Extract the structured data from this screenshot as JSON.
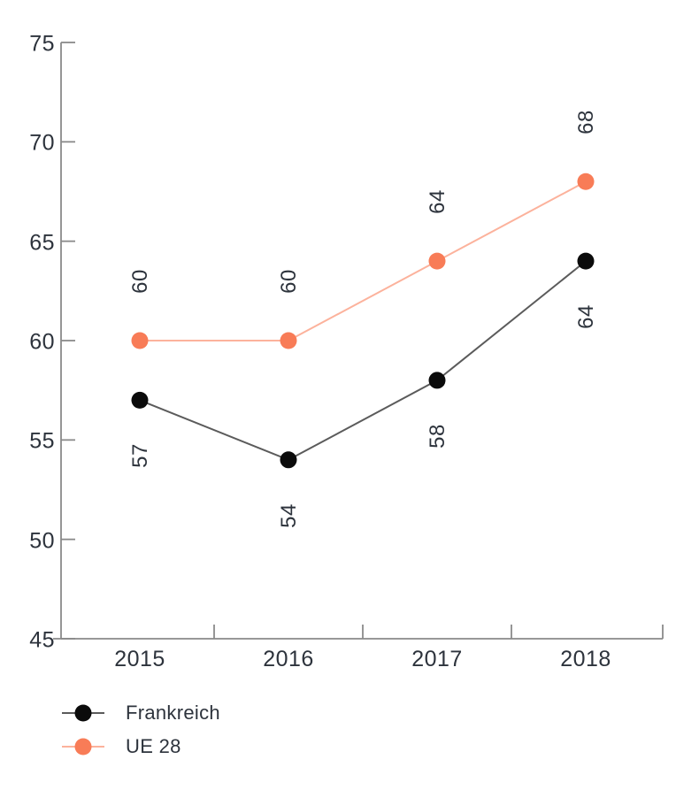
{
  "chart_data": {
    "type": "line",
    "title": "",
    "categories": [
      "2015",
      "2016",
      "2017",
      "2018"
    ],
    "series": [
      {
        "name": "Frankreich",
        "values": [
          57,
          54,
          58,
          64
        ],
        "marker_color": "#0b0b0b",
        "line_color": "#5b5b5b",
        "label_position": "below"
      },
      {
        "name": "UE 28",
        "values": [
          60,
          60,
          64,
          68
        ],
        "marker_color": "#f87c57",
        "line_color": "#fcb29c",
        "label_position": "above"
      }
    ],
    "xlabel": "",
    "ylabel": "",
    "ylim": [
      45,
      75
    ],
    "yticks": [
      45,
      50,
      55,
      60,
      65,
      70,
      75
    ],
    "grid": false,
    "point_labels_shown": true,
    "point_label_rotation_deg": -90,
    "legend_position": "bottom-left",
    "axis_color": "#8a8a8a",
    "text_color": "#2d333c"
  }
}
